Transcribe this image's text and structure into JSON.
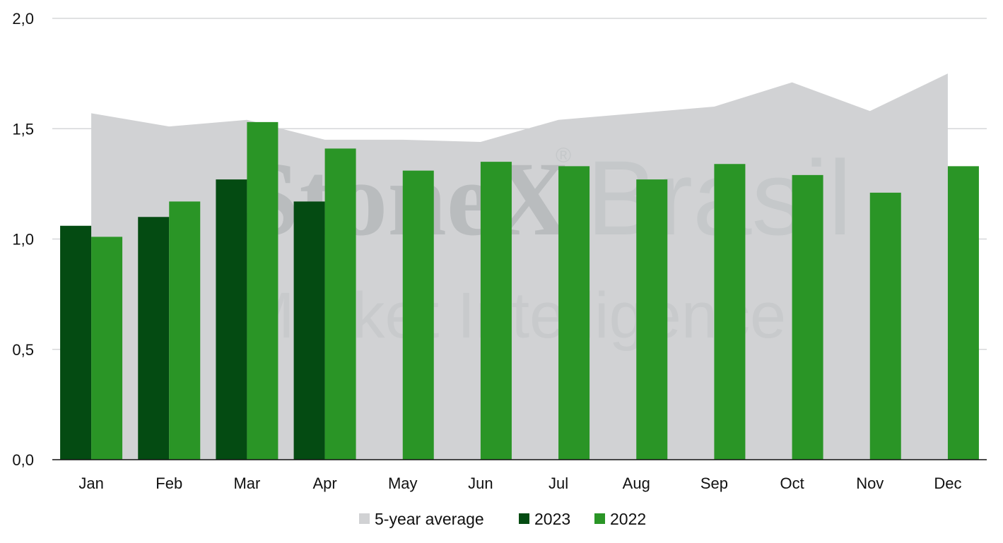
{
  "chart_data": {
    "type": "bar",
    "categories": [
      "Jan",
      "Feb",
      "Mar",
      "Apr",
      "May",
      "Jun",
      "Jul",
      "Aug",
      "Sep",
      "Oct",
      "Nov",
      "Dec"
    ],
    "series": [
      {
        "name": "5-year average",
        "kind": "area",
        "color": "#d1d2d4",
        "values": [
          1.57,
          1.51,
          1.54,
          1.45,
          1.45,
          1.44,
          1.54,
          1.57,
          1.6,
          1.71,
          1.58,
          1.75
        ]
      },
      {
        "name": "2023",
        "kind": "bar",
        "color": "#044b12",
        "values": [
          1.06,
          1.1,
          1.27,
          1.17,
          null,
          null,
          null,
          null,
          null,
          null,
          null,
          null
        ]
      },
      {
        "name": "2022",
        "kind": "bar",
        "color": "#2a9526",
        "values": [
          1.01,
          1.17,
          1.53,
          1.41,
          1.31,
          1.35,
          1.33,
          1.27,
          1.34,
          1.29,
          1.21,
          1.33
        ]
      }
    ],
    "yticks": [
      "0,0",
      "0,5",
      "1,0",
      "1,5",
      "2,0"
    ],
    "ylim": [
      0,
      2.0
    ],
    "grid": true,
    "legend_position": "bottom",
    "title": "",
    "xlabel": "",
    "ylabel": ""
  },
  "watermark": {
    "brand": "StoneX",
    "registered": "®",
    "region": "Brasil",
    "tagline": "Market Intelligence"
  }
}
